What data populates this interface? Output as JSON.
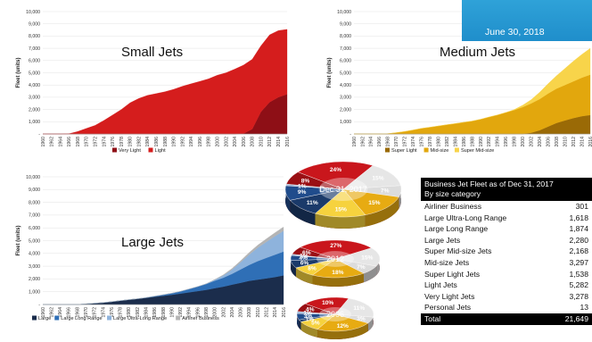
{
  "banner": {
    "date_text": "June 30, 2018"
  },
  "chart_data": [
    {
      "type": "area",
      "stacked": true,
      "title": "Small Jets",
      "ylabel": "Fleet (units)",
      "ylim": [
        0,
        10000
      ],
      "yticks": [
        "10,000",
        "9,000",
        "8,000",
        "7,000",
        "6,000",
        "5,000",
        "4,000",
        "3,000",
        "2,000",
        "1,000",
        "-"
      ],
      "x": [
        1960,
        1962,
        1964,
        1966,
        1968,
        1970,
        1972,
        1974,
        1976,
        1978,
        1980,
        1982,
        1984,
        1986,
        1988,
        1990,
        1992,
        1994,
        1996,
        1998,
        2000,
        2002,
        2004,
        2006,
        2008,
        2010,
        2012,
        2014,
        2016
      ],
      "series": [
        {
          "name": "Very Light",
          "color": "#8e0f16",
          "values": [
            0,
            0,
            0,
            0,
            0,
            0,
            0,
            0,
            0,
            0,
            0,
            0,
            0,
            0,
            0,
            0,
            0,
            0,
            0,
            0,
            0,
            0,
            0,
            30,
            400,
            1800,
            2600,
            3000,
            3250
          ]
        },
        {
          "name": "Light",
          "color": "#d51d1d",
          "values": [
            0,
            0,
            0,
            20,
            200,
            450,
            700,
            1100,
            1550,
            2000,
            2550,
            2900,
            3150,
            3300,
            3450,
            3650,
            3900,
            4100,
            4300,
            4500,
            4800,
            5000,
            5300,
            5600,
            5700,
            5400,
            5500,
            5450,
            5300
          ]
        }
      ]
    },
    {
      "type": "area",
      "stacked": true,
      "title": "Medium Jets",
      "ylabel": "Fleet (units)",
      "ylim": [
        0,
        10000
      ],
      "yticks": [
        "10,000",
        "9,000",
        "8,000",
        "7,000",
        "6,000",
        "5,000",
        "4,000",
        "3,000",
        "2,000",
        "1,000",
        "-"
      ],
      "x": [
        1960,
        1962,
        1964,
        1966,
        1968,
        1970,
        1972,
        1974,
        1976,
        1978,
        1980,
        1982,
        1984,
        1986,
        1988,
        1990,
        1992,
        1994,
        1996,
        1998,
        2000,
        2002,
        2004,
        2006,
        2008,
        2010,
        2012,
        2014,
        2016
      ],
      "series": [
        {
          "name": "Super Light",
          "color": "#9a6a06",
          "values": [
            0,
            0,
            0,
            0,
            0,
            0,
            0,
            0,
            0,
            0,
            0,
            0,
            0,
            0,
            0,
            0,
            0,
            0,
            0,
            0,
            0,
            100,
            300,
            600,
            900,
            1100,
            1300,
            1450,
            1550
          ]
        },
        {
          "name": "Mid-size",
          "color": "#e2a70d",
          "values": [
            0,
            0,
            0,
            0,
            20,
            100,
            200,
            320,
            450,
            550,
            650,
            750,
            850,
            950,
            1050,
            1200,
            1380,
            1550,
            1750,
            1950,
            2200,
            2400,
            2550,
            2700,
            2800,
            2900,
            3000,
            3150,
            3300
          ]
        },
        {
          "name": "Super Mid-size",
          "color": "#f8d44a",
          "values": [
            0,
            0,
            0,
            0,
            0,
            0,
            0,
            0,
            0,
            0,
            0,
            0,
            0,
            0,
            0,
            0,
            0,
            0,
            0,
            50,
            150,
            300,
            550,
            800,
            1050,
            1350,
            1650,
            1900,
            2150
          ]
        }
      ]
    },
    {
      "type": "area",
      "stacked": true,
      "title": "Large Jets",
      "ylabel": "Fleet (units)",
      "ylim": [
        0,
        10000
      ],
      "yticks": [
        "10,000",
        "9,000",
        "8,000",
        "7,000",
        "6,000",
        "5,000",
        "4,000",
        "3,000",
        "2,000",
        "1,000",
        "-"
      ],
      "x": [
        1960,
        1962,
        1964,
        1966,
        1968,
        1970,
        1972,
        1974,
        1976,
        1978,
        1980,
        1982,
        1984,
        1986,
        1988,
        1990,
        1992,
        1994,
        1996,
        1998,
        2000,
        2002,
        2004,
        2006,
        2008,
        2010,
        2012,
        2014,
        2016
      ],
      "series": [
        {
          "name": "Large",
          "color": "#1b2d4c",
          "values": [
            0,
            0,
            0,
            0,
            0,
            50,
            100,
            150,
            220,
            300,
            380,
            450,
            520,
            600,
            680,
            760,
            850,
            950,
            1050,
            1150,
            1280,
            1400,
            1550,
            1700,
            1850,
            1950,
            2050,
            2150,
            2280
          ]
        },
        {
          "name": "Large Long Range",
          "color": "#2f6fb6",
          "values": [
            0,
            0,
            0,
            0,
            0,
            0,
            0,
            0,
            0,
            0,
            0,
            0,
            20,
            50,
            80,
            120,
            180,
            260,
            350,
            450,
            580,
            700,
            850,
            1050,
            1250,
            1450,
            1600,
            1750,
            1870
          ]
        },
        {
          "name": "Large Ultra-Long Range",
          "color": "#8eb3dc",
          "values": [
            0,
            0,
            0,
            0,
            0,
            0,
            0,
            0,
            0,
            0,
            0,
            0,
            0,
            0,
            0,
            0,
            0,
            0,
            0,
            20,
            80,
            180,
            330,
            550,
            800,
            1050,
            1250,
            1450,
            1620
          ]
        },
        {
          "name": "Airliner Business",
          "color": "#b4b4b4",
          "values": [
            0,
            0,
            0,
            0,
            0,
            0,
            0,
            0,
            0,
            0,
            0,
            0,
            0,
            0,
            0,
            0,
            0,
            0,
            0,
            0,
            20,
            50,
            80,
            120,
            160,
            200,
            240,
            270,
            300
          ]
        }
      ]
    },
    {
      "type": "pie",
      "title": "Dec 31, 2017",
      "slices": [
        {
          "label": "24%",
          "value": 24,
          "color": "#c9161c"
        },
        {
          "label": "15%",
          "value": 15,
          "color": "#e6e6e6"
        },
        {
          "label": "7%",
          "value": 7,
          "color": "#dcdcdc"
        },
        {
          "label": "15%",
          "value": 15,
          "color": "#e7ab12"
        },
        {
          "label": "15%",
          "value": 15,
          "color": "#f6d23e"
        },
        {
          "label": "11%",
          "value": 11,
          "color": "#1b3a6a"
        },
        {
          "label": "9%",
          "value": 9,
          "color": "#204c8c"
        },
        {
          "label": "1%",
          "value": 1,
          "color": "#9fb8d8"
        },
        {
          "label": "8%",
          "value": 8,
          "color": "#9a0f14"
        }
      ]
    },
    {
      "type": "pie",
      "title": "2012",
      "slices": [
        {
          "label": "27%",
          "value": 27,
          "color": "#c9161c"
        },
        {
          "label": "15%",
          "value": 15,
          "color": "#e6e6e6"
        },
        {
          "label": "7%",
          "value": 7,
          "color": "#dcdcdc"
        },
        {
          "label": "18%",
          "value": 18,
          "color": "#e7ab12"
        },
        {
          "label": "8%",
          "value": 8,
          "color": "#f6d23e"
        },
        {
          "label": "6%",
          "value": 6,
          "color": "#1b3a6a"
        },
        {
          "label": "4%",
          "value": 4,
          "color": "#204c8c"
        },
        {
          "label": "1%",
          "value": 1,
          "color": "#9fb8d8"
        },
        {
          "label": "6%",
          "value": 6,
          "color": "#9a0f14"
        }
      ]
    },
    {
      "type": "pie",
      "title": "2006",
      "slices": [
        {
          "label": "10%",
          "value": 10,
          "color": "#c9161c"
        },
        {
          "label": "11%",
          "value": 11,
          "color": "#e6e6e6"
        },
        {
          "label": "3%",
          "value": 3,
          "color": "#dcdcdc"
        },
        {
          "label": "12%",
          "value": 12,
          "color": "#e7ab12"
        },
        {
          "label": "5%",
          "value": 5,
          "color": "#f6d23e"
        },
        {
          "label": "1%",
          "value": 1,
          "color": "#1b3a6a"
        },
        {
          "label": "3%",
          "value": 3,
          "color": "#204c8c"
        },
        {
          "label": "1%",
          "value": 1,
          "color": "#9fb8d8"
        },
        {
          "label": "4%",
          "value": 4,
          "color": "#9a0f14"
        }
      ]
    },
    {
      "type": "table",
      "title": "Business Jet Fleet as of Dec 31, 2017",
      "subtitle": "By size category",
      "rows": [
        {
          "label": "Airliner Business",
          "value": "301"
        },
        {
          "label": "Large Ultra-Long Range",
          "value": "1,618"
        },
        {
          "label": "Large Long Range",
          "value": "1,874"
        },
        {
          "label": "Large Jets",
          "value": "2,280"
        },
        {
          "label": "Super Mid-size Jets",
          "value": "2,168"
        },
        {
          "label": "Mid-size Jets",
          "value": "3,297"
        },
        {
          "label": "Super Light Jets",
          "value": "1,538"
        },
        {
          "label": "Light Jets",
          "value": "5,282"
        },
        {
          "label": "Very Light Jets",
          "value": "3,278"
        },
        {
          "label": "Personal Jets",
          "value": "13"
        }
      ],
      "total": {
        "label": "Total",
        "value": "21,649"
      }
    }
  ]
}
